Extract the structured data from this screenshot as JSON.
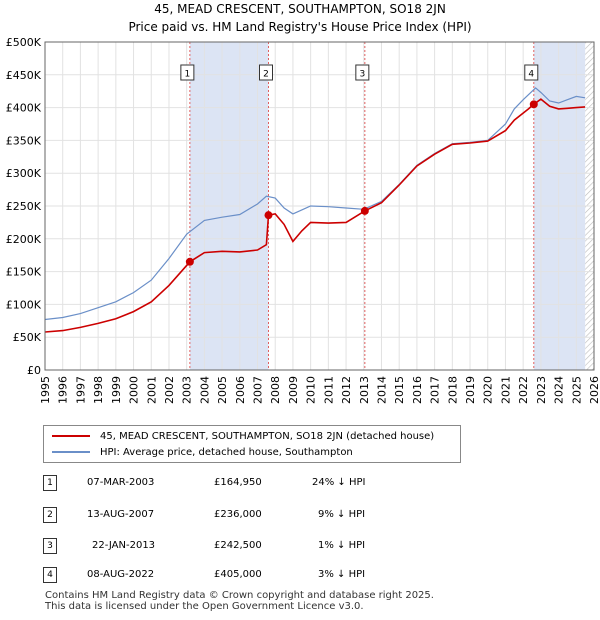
{
  "title": "45, MEAD CRESCENT, SOUTHAMPTON, SO18 2JN",
  "subtitle": "Price paid vs. HM Land Registry's House Price Index (HPI)",
  "colors": {
    "property": "#cc0000",
    "hpi": "#6a8fc8",
    "shade": "#dce4f4",
    "vline": "#e06060"
  },
  "legend": {
    "property": "45, MEAD CRESCENT, SOUTHAMPTON, SO18 2JN (detached house)",
    "hpi": "HPI: Average price, detached house, Southampton"
  },
  "transactions": [
    {
      "num": "1",
      "date": "07-MAR-2003",
      "price": "£164,950",
      "hpi": "24% ↓ HPI"
    },
    {
      "num": "2",
      "date": "13-AUG-2007",
      "price": "£236,000",
      "hpi": "9% ↓ HPI"
    },
    {
      "num": "3",
      "date": "22-JAN-2013",
      "price": "£242,500",
      "hpi": "1% ↓ HPI"
    },
    {
      "num": "4",
      "date": "08-AUG-2022",
      "price": "£405,000",
      "hpi": "3% ↓ HPI"
    }
  ],
  "footer": {
    "line1": "Contains HM Land Registry data © Crown copyright and database right 2025.",
    "line2": "This data is licensed under the Open Government Licence v3.0."
  },
  "chart_data": {
    "type": "line",
    "title": "45, MEAD CRESCENT, SOUTHAMPTON, SO18 2JN",
    "xlabel": "",
    "ylabel": "",
    "xlim": [
      1995,
      2026
    ],
    "ylim": [
      0,
      500000
    ],
    "y_ticks": [
      0,
      50000,
      100000,
      150000,
      200000,
      250000,
      300000,
      350000,
      400000,
      450000,
      500000
    ],
    "y_tick_labels": [
      "£0",
      "£50K",
      "£100K",
      "£150K",
      "£200K",
      "£250K",
      "£300K",
      "£350K",
      "£400K",
      "£450K",
      "£500K"
    ],
    "x_ticks": [
      1995,
      1996,
      1997,
      1998,
      1999,
      2000,
      2001,
      2002,
      2003,
      2004,
      2005,
      2006,
      2007,
      2008,
      2009,
      2010,
      2011,
      2012,
      2013,
      2014,
      2015,
      2016,
      2017,
      2018,
      2019,
      2020,
      2021,
      2022,
      2023,
      2024,
      2025,
      2026
    ],
    "x_tick_labels": [
      "1995",
      "1996",
      "1997",
      "1998",
      "1999",
      "2000",
      "2001",
      "2002",
      "2003",
      "2004",
      "2005",
      "2006",
      "2007",
      "2008",
      "2009",
      "2010",
      "2011",
      "2012",
      "2013",
      "2014",
      "2015",
      "2016",
      "2017",
      "2018",
      "2019",
      "2020",
      "2021",
      "2022",
      "2023",
      "2024",
      "2025",
      "2026"
    ],
    "sale_markers": [
      {
        "label": "1",
        "x": 2003.18,
        "y": 164950
      },
      {
        "label": "2",
        "x": 2007.62,
        "y": 236000
      },
      {
        "label": "3",
        "x": 2013.06,
        "y": 242500
      },
      {
        "label": "4",
        "x": 2022.6,
        "y": 405000
      }
    ],
    "shaded_ranges": [
      [
        2003.18,
        2007.62
      ],
      [
        2022.6,
        2025.5
      ]
    ],
    "hatch_from": 2025.5,
    "series": [
      {
        "name": "HPI: Average price, detached house, Southampton",
        "x": [
          1995,
          1996,
          1997,
          1998,
          1999,
          2000,
          2001,
          2002,
          2003,
          2004,
          2005,
          2006,
          2007,
          2007.5,
          2008,
          2008.5,
          2009,
          2009.5,
          2010,
          2011,
          2012,
          2013,
          2014,
          2015,
          2016,
          2017,
          2018,
          2019,
          2020,
          2021,
          2021.5,
          2022,
          2022.7,
          2023,
          2023.5,
          2024,
          2024.5,
          2025,
          2025.5
        ],
        "values": [
          77000,
          80000,
          86000,
          95000,
          104000,
          118000,
          137000,
          170000,
          207000,
          228000,
          233000,
          237000,
          253000,
          265000,
          262000,
          247000,
          238000,
          244000,
          250000,
          249000,
          247000,
          245000,
          257000,
          283000,
          312000,
          330000,
          345000,
          347000,
          350000,
          375000,
          398000,
          412000,
          430000,
          423000,
          410000,
          407000,
          412000,
          417000,
          415000
        ]
      },
      {
        "name": "45, MEAD CRESCENT, SOUTHAMPTON, SO18 2JN (detached house)",
        "x": [
          1995,
          1996,
          1997,
          1998,
          1999,
          2000,
          2001,
          2002,
          2003.18,
          2004,
          2005,
          2006,
          2007,
          2007.5,
          2007.62,
          2008,
          2008.5,
          2009,
          2009.5,
          2010,
          2011,
          2012,
          2013.06,
          2014,
          2015,
          2016,
          2017,
          2018,
          2019,
          2020,
          2021,
          2021.5,
          2022.3,
          2022.6,
          2023,
          2023.5,
          2024,
          2024.5,
          2025,
          2025.5
        ],
        "values": [
          58000,
          60000,
          65000,
          71000,
          78000,
          89000,
          104000,
          129000,
          164950,
          179000,
          181000,
          180000,
          183000,
          191000,
          236000,
          238000,
          222000,
          196000,
          212000,
          225000,
          224000,
          225000,
          242500,
          255000,
          282000,
          311000,
          329000,
          344000,
          346000,
          349000,
          365000,
          381000,
          398000,
          405000,
          413000,
          402000,
          398000,
          399000,
          400000,
          401000
        ]
      }
    ]
  }
}
